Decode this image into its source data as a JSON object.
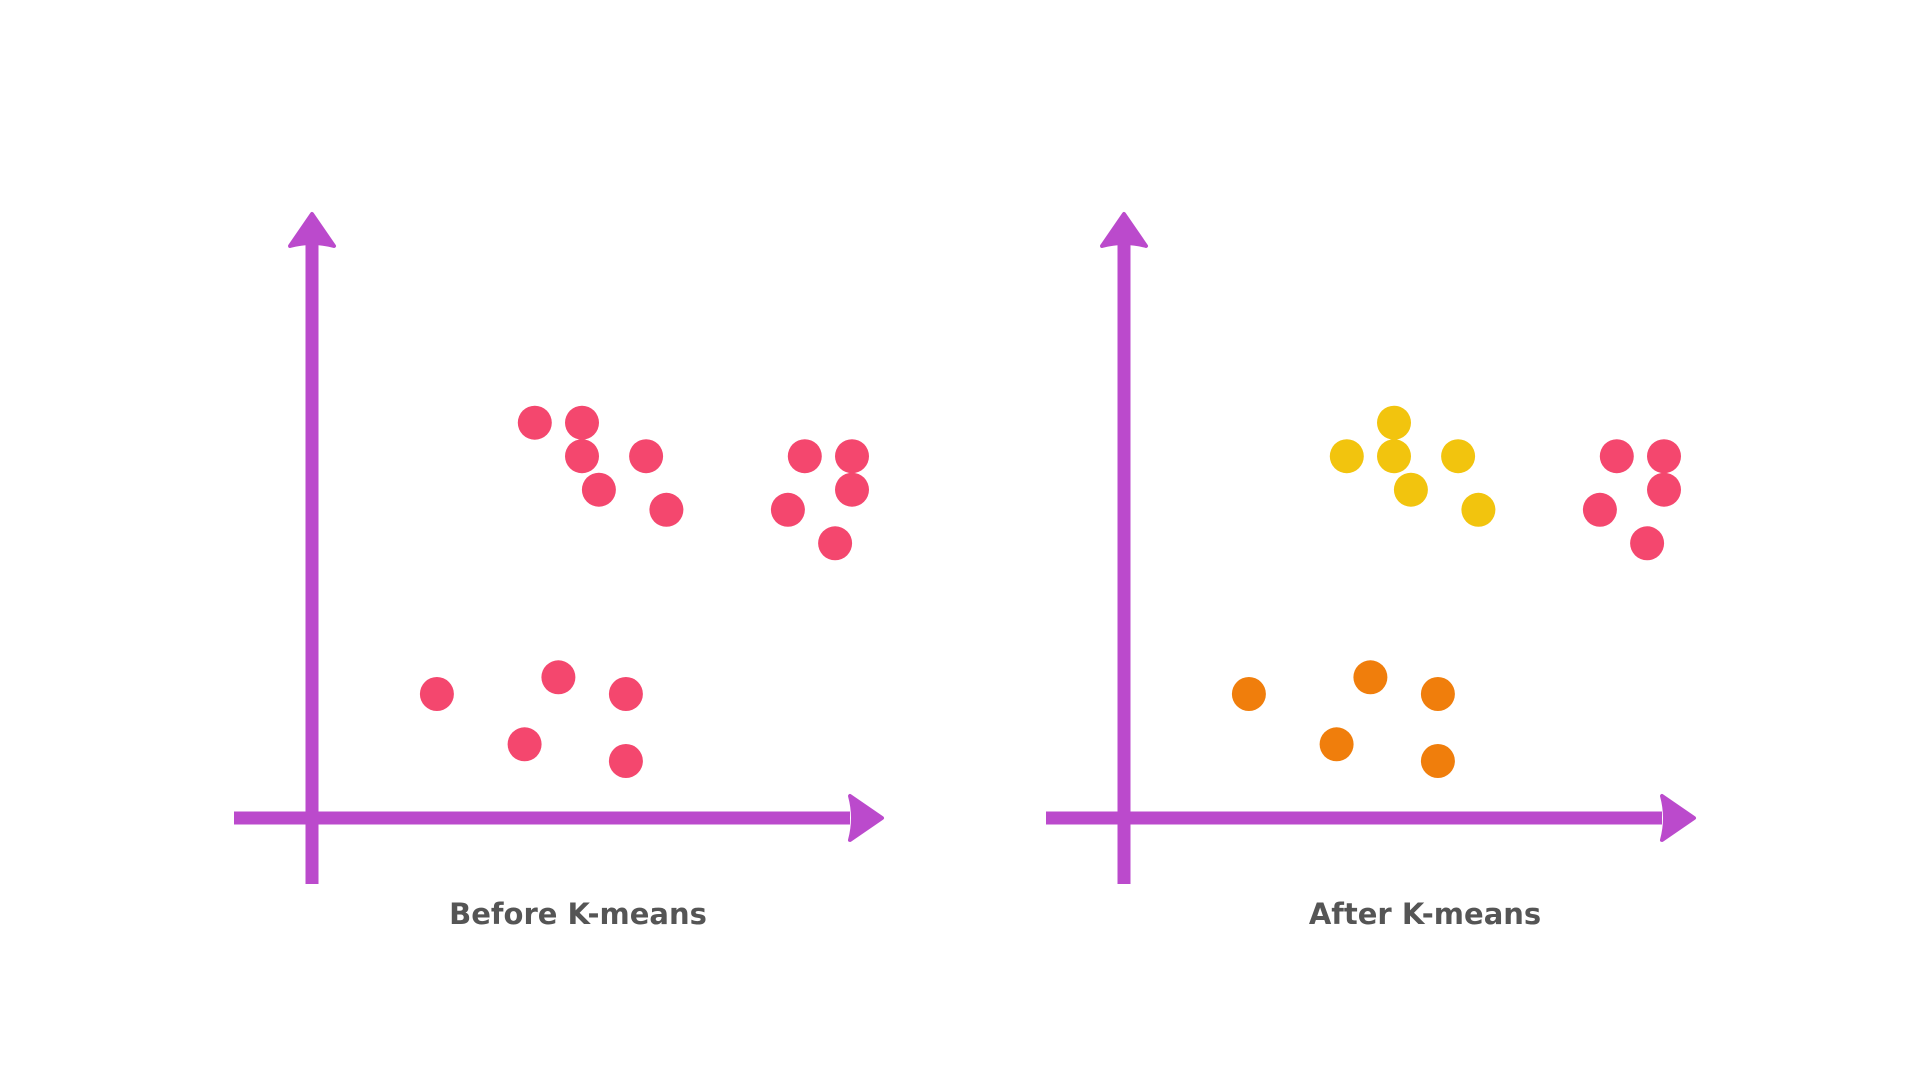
{
  "colors": {
    "axis": "#bb4acc",
    "text": "#555555",
    "unclustered": "#f4476e",
    "cluster_yellow": "#f2c40e",
    "cluster_orange": "#f07e0c",
    "cluster_pink": "#f4476e"
  },
  "chart_data": [
    {
      "type": "scatter",
      "title": "Before K-means",
      "xlabel": "",
      "ylabel": "",
      "xlim": [
        0,
        10
      ],
      "ylim": [
        0,
        10
      ],
      "grid": false,
      "legend": "none",
      "series": [
        {
          "color": "#f4476e",
          "points": [
            [
              3.3,
              5.9
            ],
            [
              4.0,
              5.4
            ],
            [
              4.0,
              5.9
            ],
            [
              4.25,
              4.9
            ],
            [
              4.95,
              5.4
            ],
            [
              5.25,
              4.6
            ],
            [
              7.3,
              5.4
            ],
            [
              8.0,
              5.4
            ],
            [
              7.05,
              4.6
            ],
            [
              8.0,
              4.9
            ],
            [
              7.75,
              4.1
            ],
            [
              1.85,
              1.85
            ],
            [
              3.65,
              2.1
            ],
            [
              4.65,
              1.85
            ],
            [
              3.15,
              1.1
            ],
            [
              4.65,
              0.85
            ]
          ]
        }
      ]
    },
    {
      "type": "scatter",
      "title": "After K-means",
      "xlabel": "",
      "ylabel": "",
      "xlim": [
        0,
        10
      ],
      "ylim": [
        0,
        10
      ],
      "grid": false,
      "legend": "none",
      "series": [
        {
          "color": "#f2c40e",
          "points": [
            [
              3.3,
              5.4
            ],
            [
              4.0,
              5.9
            ],
            [
              4.0,
              5.4
            ],
            [
              4.25,
              4.9
            ],
            [
              4.95,
              5.4
            ],
            [
              5.25,
              4.6
            ]
          ]
        },
        {
          "color": "#f4476e",
          "points": [
            [
              7.3,
              5.4
            ],
            [
              8.0,
              5.4
            ],
            [
              7.05,
              4.6
            ],
            [
              8.0,
              4.9
            ],
            [
              7.75,
              4.1
            ]
          ]
        },
        {
          "color": "#f07e0c",
          "points": [
            [
              1.85,
              1.85
            ],
            [
              3.65,
              2.1
            ],
            [
              4.65,
              1.85
            ],
            [
              3.15,
              1.1
            ],
            [
              4.65,
              0.85
            ]
          ]
        }
      ]
    }
  ]
}
